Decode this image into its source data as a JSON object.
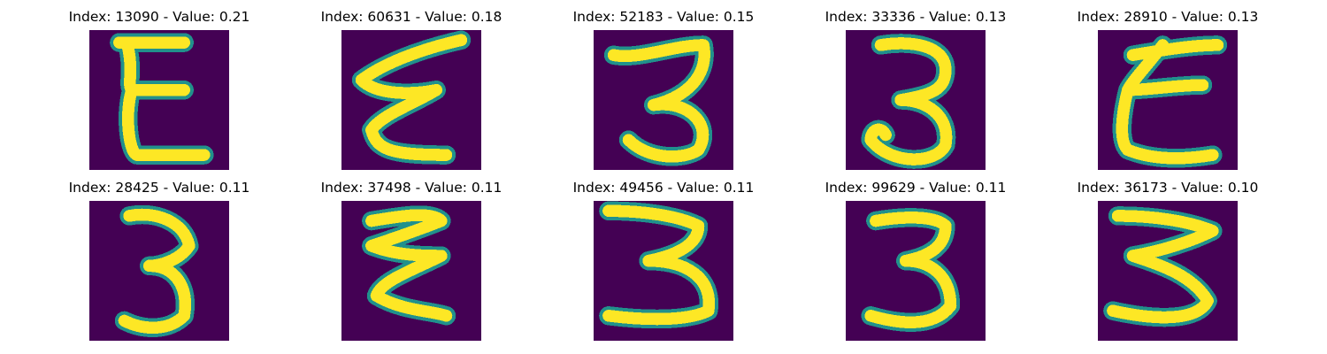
{
  "figure": {
    "panels": [
      {
        "title": "Index: 13090 - Value: 0.21",
        "glyph": "E-shape"
      },
      {
        "title": "Index: 60631 - Value: 0.18",
        "glyph": "zigzag-three"
      },
      {
        "title": "Index: 52183 - Value: 0.15",
        "glyph": "three"
      },
      {
        "title": "Index: 33336 - Value: 0.13",
        "glyph": "three"
      },
      {
        "title": "Index: 28910 - Value: 0.13",
        "glyph": "E-shape"
      },
      {
        "title": "Index: 28425 - Value: 0.11",
        "glyph": "three"
      },
      {
        "title": "Index: 37498 - Value: 0.11",
        "glyph": "zigzag-three"
      },
      {
        "title": "Index: 49456 - Value: 0.11",
        "glyph": "three"
      },
      {
        "title": "Index: 99629 - Value: 0.11",
        "glyph": "three"
      },
      {
        "title": "Index: 36173 - Value: 0.10",
        "glyph": "three"
      }
    ]
  },
  "colors": {
    "background": "#440154",
    "stroke": "#fde725",
    "edge": "#21918c",
    "title": "#000000"
  }
}
